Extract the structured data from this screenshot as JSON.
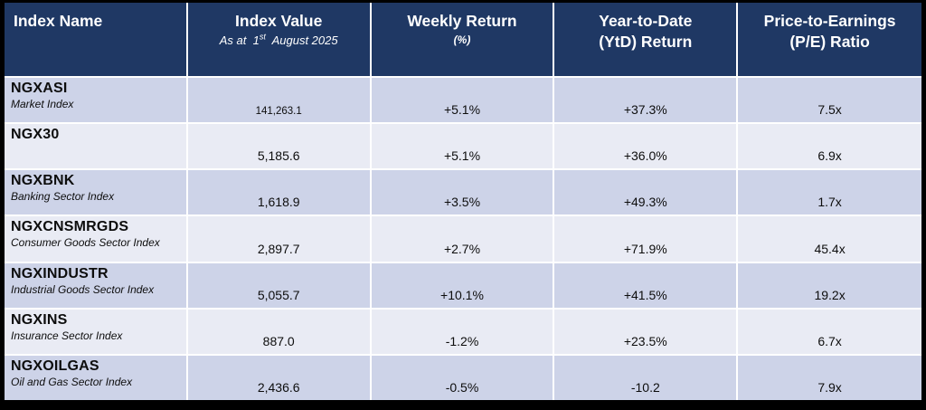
{
  "colors": {
    "header_bg": "#1F3864",
    "header_text": "#FFFFFF",
    "row_band_dark": "#CDD3E8",
    "row_band_light": "#E9EBF4",
    "grid_line": "#FFFFFF",
    "outer_border": "#000000",
    "body_text": "#0D0D0D"
  },
  "header": {
    "as_at_prefix": "As at  1",
    "as_at_sup": "st",
    "as_at_suffix": "  August 2025"
  },
  "chart_data": {
    "type": "table",
    "title": "",
    "columns": [
      {
        "title": "Index Name",
        "sub": ""
      },
      {
        "title": "Index Value",
        "sub": "As at 1st August 2025"
      },
      {
        "title": "Weekly Return",
        "sub": "(%)"
      },
      {
        "title": "Year-to-Date\n(YtD) Return",
        "sub": ""
      },
      {
        "title": "Price-to-Earnings\n(P/E) Ratio",
        "sub": ""
      }
    ],
    "rows": [
      {
        "index_name": "NGXASI",
        "index_desc": "Market Index",
        "index_value": "141,263.1",
        "weekly_return": "+5.1%",
        "ytd_return": "+37.3%",
        "pe_ratio": "7.5x"
      },
      {
        "index_name": "NGX30",
        "index_desc": "",
        "index_value": "5,185.6",
        "weekly_return": "+5.1%",
        "ytd_return": "+36.0%",
        "pe_ratio": "6.9x"
      },
      {
        "index_name": "NGXBNK",
        "index_desc": "Banking Sector Index",
        "index_value": "1,618.9",
        "weekly_return": "+3.5%",
        "ytd_return": "+49.3%",
        "pe_ratio": "1.7x"
      },
      {
        "index_name": "NGXCNSMRGDS",
        "index_desc": "Consumer Goods Sector Index",
        "index_value": "2,897.7",
        "weekly_return": "+2.7%",
        "ytd_return": "+71.9%",
        "pe_ratio": "45.4x"
      },
      {
        "index_name": "NGXINDUSTR",
        "index_desc": "Industrial Goods Sector Index",
        "index_value": "5,055.7",
        "weekly_return": "+10.1%",
        "ytd_return": "+41.5%",
        "pe_ratio": "19.2x"
      },
      {
        "index_name": "NGXINS",
        "index_desc": "Insurance Sector Index",
        "index_value": "887.0",
        "weekly_return": "-1.2%",
        "ytd_return": "+23.5%",
        "pe_ratio": "6.7x"
      },
      {
        "index_name": "NGXOILGAS",
        "index_desc": "Oil and Gas Sector Index",
        "index_value": "2,436.6",
        "weekly_return": "-0.5%",
        "ytd_return": "-10.2",
        "pe_ratio": "7.9x"
      }
    ]
  }
}
